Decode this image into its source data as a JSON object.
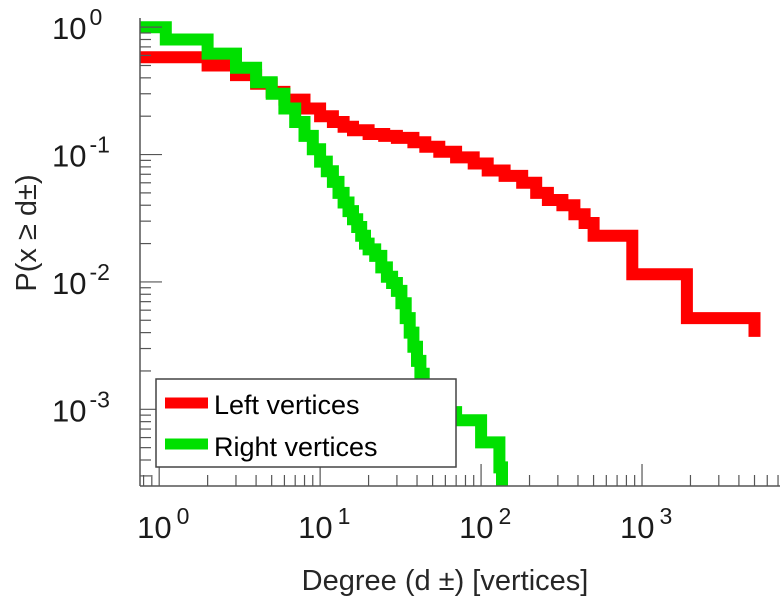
{
  "chart_data": {
    "type": "line",
    "title": "",
    "xlabel": "Degree (d ±) [vertices]",
    "ylabel": "P(x ≥ d±)",
    "x_scale": "log",
    "y_scale": "log",
    "xlim": [
      0.76,
      7200
    ],
    "ylim": [
      0.00025,
      1.18
    ],
    "grid": false,
    "legend_position": "lower-left",
    "x_ticks": [
      {
        "value": 1,
        "base": "10",
        "exp": "0"
      },
      {
        "value": 10,
        "base": "10",
        "exp": "1"
      },
      {
        "value": 100,
        "base": "10",
        "exp": "2"
      },
      {
        "value": 1000,
        "base": "10",
        "exp": "3"
      }
    ],
    "y_ticks": [
      {
        "value": 1,
        "base": "10",
        "exp": "0"
      },
      {
        "value": 0.1,
        "base": "10",
        "exp": "-1"
      },
      {
        "value": 0.01,
        "base": "10",
        "exp": "-2"
      },
      {
        "value": 0.001,
        "base": "10",
        "exp": "-3"
      }
    ],
    "series": [
      {
        "name": "Left vertices",
        "color": "#ff0000",
        "step": true,
        "points": [
          [
            0.76,
            0.58
          ],
          [
            1,
            0.58
          ],
          [
            2,
            0.5
          ],
          [
            3,
            0.42
          ],
          [
            4,
            0.36
          ],
          [
            5,
            0.31
          ],
          [
            6,
            0.27
          ],
          [
            8,
            0.23
          ],
          [
            10,
            0.2
          ],
          [
            12,
            0.18
          ],
          [
            14,
            0.165
          ],
          [
            16,
            0.155
          ],
          [
            20,
            0.145
          ],
          [
            25,
            0.14
          ],
          [
            30,
            0.135
          ],
          [
            38,
            0.125
          ],
          [
            45,
            0.115
          ],
          [
            55,
            0.105
          ],
          [
            70,
            0.095
          ],
          [
            90,
            0.085
          ],
          [
            110,
            0.075
          ],
          [
            140,
            0.068
          ],
          [
            180,
            0.06
          ],
          [
            220,
            0.05
          ],
          [
            260,
            0.044
          ],
          [
            320,
            0.04
          ],
          [
            380,
            0.034
          ],
          [
            440,
            0.029
          ],
          [
            500,
            0.023
          ],
          [
            870,
            0.0115
          ],
          [
            1900,
            0.0052
          ],
          [
            5000,
            0.0037
          ]
        ]
      },
      {
        "name": "Right vertices",
        "color": "#00e000",
        "step": true,
        "points": [
          [
            0.76,
            1.0
          ],
          [
            1.1,
            0.8
          ],
          [
            2,
            0.62
          ],
          [
            3,
            0.48
          ],
          [
            4,
            0.37
          ],
          [
            5,
            0.3
          ],
          [
            6,
            0.23
          ],
          [
            7,
            0.18
          ],
          [
            8,
            0.14
          ],
          [
            9,
            0.11
          ],
          [
            10,
            0.088
          ],
          [
            11,
            0.074
          ],
          [
            12,
            0.061
          ],
          [
            13,
            0.05
          ],
          [
            14,
            0.042
          ],
          [
            15,
            0.036
          ],
          [
            16,
            0.031
          ],
          [
            17,
            0.027
          ],
          [
            18,
            0.023
          ],
          [
            19,
            0.02
          ],
          [
            20,
            0.018
          ],
          [
            22,
            0.016
          ],
          [
            24,
            0.013
          ],
          [
            26,
            0.011
          ],
          [
            28,
            0.0098
          ],
          [
            30,
            0.0085
          ],
          [
            32,
            0.0068
          ],
          [
            34,
            0.0052
          ],
          [
            36,
            0.004
          ],
          [
            38,
            0.0031
          ],
          [
            40,
            0.0024
          ],
          [
            42,
            0.0019
          ],
          [
            44,
            0.00155
          ],
          [
            46,
            0.0013
          ],
          [
            50,
            0.0011
          ],
          [
            60,
            0.00095
          ],
          [
            70,
            0.00082
          ],
          [
            100,
            0.00055
          ],
          [
            130,
            0.00035
          ],
          [
            135,
            0.00025
          ]
        ]
      }
    ]
  }
}
